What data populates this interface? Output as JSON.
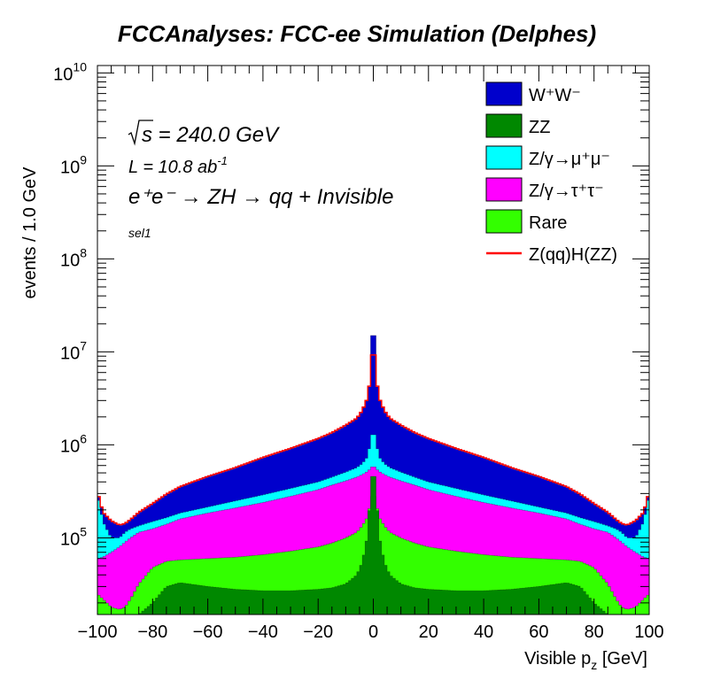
{
  "chart_data": {
    "type": "area",
    "title": "FCCAnalyses: FCC-ee Simulation (Delphes)",
    "xlabel": "Visible p_z [GeV]",
    "ylabel": "events / 1.0 GeV",
    "xlim": [
      -100,
      100
    ],
    "ylim_log": [
      15000,
      12000000000
    ],
    "log_y": true,
    "x_ticks": [
      -100,
      -80,
      -60,
      -40,
      -20,
      0,
      20,
      40,
      60,
      80,
      100
    ],
    "y_ticks": [
      {
        "exp": "5",
        "value": 100000
      },
      {
        "exp": "6",
        "value": 1000000
      },
      {
        "exp": "7",
        "value": 10000000
      },
      {
        "exp": "8",
        "value": 100000000
      },
      {
        "exp": "9",
        "value": 1000000000
      },
      {
        "exp": "10",
        "value": 10000000000
      }
    ],
    "y_tick_base": "10",
    "annotations": {
      "sqrt_s": "s",
      "energy": " = 240.0 GeV",
      "lumi": "L = 10.8 ab",
      "lumi_exp": "-1",
      "process": "e⁺e⁻ → ZH → qq + Invisible",
      "selection": "sel1"
    },
    "legend_position": "top-right",
    "stack_order_bottom_to_top": [
      "ZZ",
      "Rare",
      "Z/γ→τ⁺τ⁻",
      "Z/γ→μ⁺μ⁻",
      "W⁺W⁻"
    ],
    "series": [
      {
        "name": "W⁺W⁻",
        "color": "#0000cc",
        "role": "stacked"
      },
      {
        "name": "ZZ",
        "color": "#008800",
        "role": "stacked"
      },
      {
        "name": "Z/γ→μ⁺μ⁻",
        "color": "#00ffff",
        "role": "stacked"
      },
      {
        "name": "Z/γ→τ⁺τ⁻",
        "color": "#ff00ff",
        "role": "stacked"
      },
      {
        "name": "Rare",
        "color": "#33ff00",
        "role": "stacked"
      },
      {
        "name": "Z(qq)H(ZZ)",
        "color": "#ff0000",
        "role": "line"
      }
    ],
    "shape_points": {
      "x": [
        -100,
        -98,
        -95,
        -92,
        -90,
        -88,
        -85,
        -80,
        -75,
        -70,
        -60,
        -50,
        -40,
        -30,
        -20,
        -15,
        -10,
        -6,
        -4,
        -2,
        -1,
        0,
        1,
        2,
        4,
        6,
        10,
        15,
        20,
        30,
        40,
        50,
        60,
        70,
        75,
        80,
        85,
        88,
        90,
        92,
        95,
        98,
        100
      ],
      "zz": [
        15000,
        15000,
        15000,
        15000,
        15000,
        15000,
        15000,
        20000,
        30000,
        33000,
        30000,
        28000,
        27000,
        27000,
        28000,
        29000,
        32000,
        40000,
        55000,
        110000,
        350000,
        600000,
        350000,
        110000,
        55000,
        40000,
        32000,
        29000,
        28000,
        27000,
        27000,
        28000,
        30000,
        33000,
        30000,
        20000,
        15000,
        15000,
        15000,
        15000,
        15000,
        15000,
        15000
      ],
      "rare": [
        25000,
        22000,
        18000,
        17000,
        18000,
        22000,
        32000,
        48000,
        56000,
        58000,
        60000,
        62000,
        66000,
        72000,
        80000,
        88000,
        100000,
        115000,
        135000,
        170000,
        250000,
        310000,
        250000,
        170000,
        135000,
        115000,
        100000,
        88000,
        80000,
        72000,
        66000,
        62000,
        60000,
        58000,
        56000,
        48000,
        32000,
        22000,
        18000,
        17000,
        18000,
        22000,
        25000
      ],
      "tau": [
        60000,
        62000,
        70000,
        80000,
        90000,
        100000,
        115000,
        125000,
        140000,
        160000,
        185000,
        210000,
        240000,
        280000,
        330000,
        370000,
        410000,
        450000,
        480000,
        520000,
        560000,
        600000,
        560000,
        520000,
        480000,
        450000,
        410000,
        370000,
        330000,
        280000,
        240000,
        210000,
        185000,
        160000,
        140000,
        125000,
        115000,
        100000,
        90000,
        80000,
        70000,
        62000,
        60000
      ],
      "mu": [
        300000,
        150000,
        100000,
        100000,
        115000,
        125000,
        135000,
        150000,
        165000,
        185000,
        215000,
        250000,
        290000,
        340000,
        400000,
        450000,
        510000,
        570000,
        630000,
        750000,
        1100000,
        1500000,
        1100000,
        750000,
        630000,
        570000,
        510000,
        450000,
        400000,
        340000,
        290000,
        250000,
        215000,
        185000,
        165000,
        150000,
        135000,
        125000,
        115000,
        100000,
        100000,
        150000,
        300000
      ],
      "ww": [
        310000,
        185000,
        150000,
        135000,
        140000,
        155000,
        185000,
        230000,
        290000,
        350000,
        450000,
        560000,
        720000,
        900000,
        1150000,
        1330000,
        1600000,
        1900000,
        2300000,
        3200000,
        5500000,
        15000000,
        5500000,
        3200000,
        2300000,
        1900000,
        1600000,
        1330000,
        1150000,
        900000,
        720000,
        560000,
        450000,
        350000,
        290000,
        230000,
        185000,
        155000,
        140000,
        135000,
        150000,
        185000,
        310000
      ]
    }
  }
}
